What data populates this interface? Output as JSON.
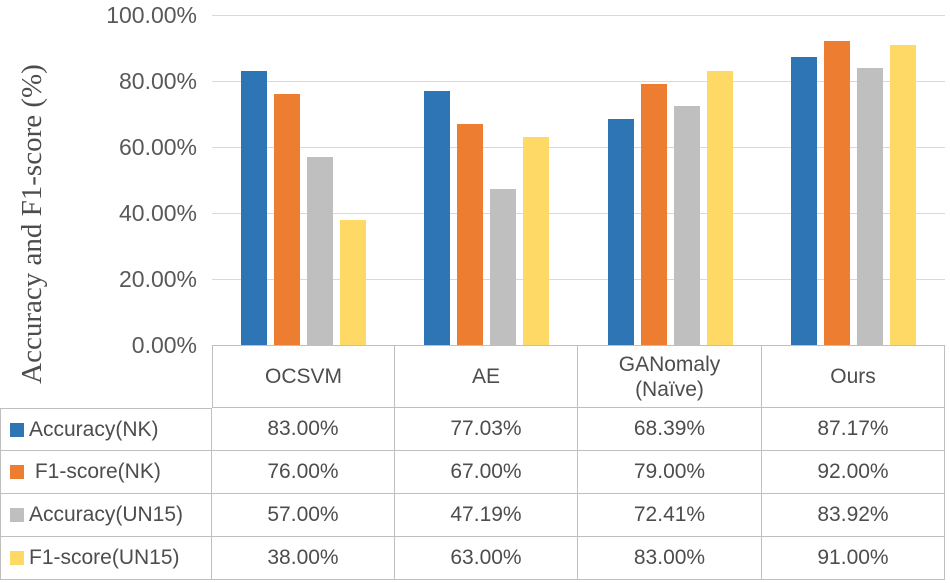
{
  "chart_data": {
    "type": "bar",
    "title": "",
    "xlabel": "",
    "ylabel": "Accuracy and F1-score (%)",
    "ylim": [
      0,
      100
    ],
    "grid": true,
    "legend_position": "table-rows-left",
    "categories": [
      "OCSVM",
      "AE",
      "GANomaly\n(Naïve)",
      "Ours"
    ],
    "series": [
      {
        "name": "Accuracy(NK)",
        "color": "#2E75B6",
        "values": [
          83.0,
          77.03,
          68.39,
          87.17
        ],
        "display_values": [
          "83.00%",
          "77.03%",
          "68.39%",
          "87.17%"
        ]
      },
      {
        "name": " F1-score(NK)",
        "color": "#ED7D31",
        "values": [
          76.0,
          67.0,
          79.0,
          92.0
        ],
        "display_values": [
          "76.00%",
          "67.00%",
          "79.00%",
          "92.00%"
        ]
      },
      {
        "name": "Accuracy(UN15)",
        "color": "#BFBFBF",
        "values": [
          57.0,
          47.19,
          72.41,
          83.92
        ],
        "display_values": [
          "57.00%",
          "47.19%",
          "72.41%",
          "83.92%"
        ]
      },
      {
        "name": "F1-score(UN15)",
        "color": "#FFD966",
        "values": [
          38.0,
          63.0,
          83.0,
          91.0
        ],
        "display_values": [
          "38.00%",
          "63.00%",
          "83.00%",
          "91.00%"
        ]
      }
    ],
    "y_ticks": [
      {
        "value": 0,
        "label": "0.00%"
      },
      {
        "value": 20,
        "label": "20.00%"
      },
      {
        "value": 40,
        "label": "40.00%"
      },
      {
        "value": 60,
        "label": "60.00%"
      },
      {
        "value": 80,
        "label": "80.00%"
      },
      {
        "value": 100,
        "label": "100.00%"
      }
    ],
    "colors": {
      "gridline": "#D9D9D9",
      "table_border": "#BFBFBF",
      "axis_text": "#595959",
      "table_text": "#4D4D4D"
    }
  }
}
